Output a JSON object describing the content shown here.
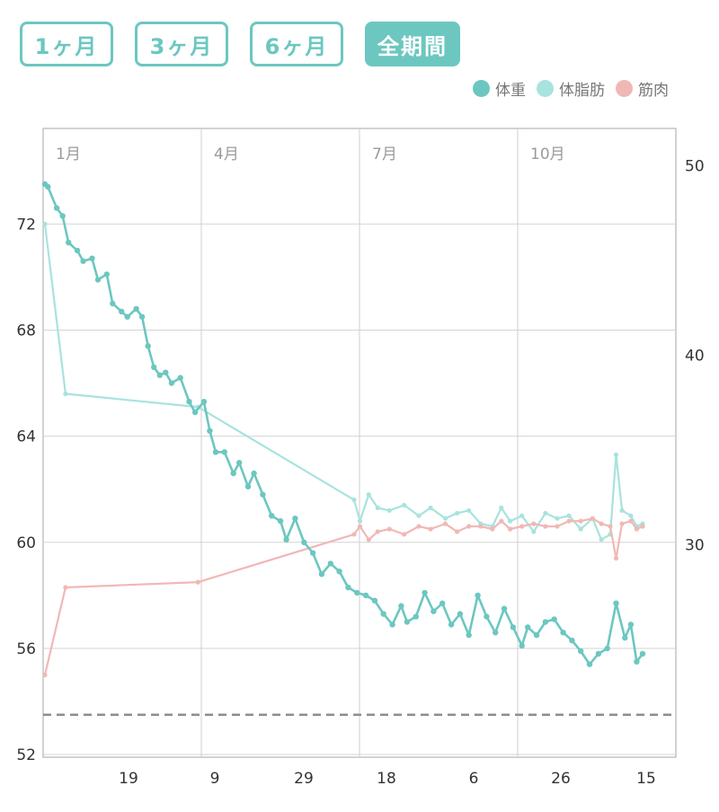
{
  "tabs": [
    {
      "label": "1ヶ月",
      "active": false
    },
    {
      "label": "3ヶ月",
      "active": false
    },
    {
      "label": "6ヶ月",
      "active": false
    },
    {
      "label": "全期間",
      "active": true
    }
  ],
  "legend": [
    {
      "label": "体重",
      "color": "#6cc7c0"
    },
    {
      "label": "体脂肪",
      "color": "#a8e3de"
    },
    {
      "label": "筋肉",
      "color": "#f0b8b5"
    }
  ],
  "chart_data": {
    "type": "line",
    "y_left": {
      "ticks": [
        52,
        56,
        60,
        64,
        68,
        72
      ],
      "range": [
        51.9,
        75.6
      ]
    },
    "y_right": {
      "ticks": [
        30,
        40,
        50
      ]
    },
    "month_labels": [
      "1月",
      "4月",
      "7月",
      "10月"
    ],
    "date_labels": [
      "19",
      "9",
      "29",
      "18",
      "6",
      "26",
      "15"
    ],
    "target_line": 53.5,
    "series": [
      {
        "name": "体重",
        "color": "#6cc7c0",
        "points": [
          [
            0,
            73.5
          ],
          [
            1,
            73.4
          ],
          [
            4,
            72.6
          ],
          [
            6,
            72.3
          ],
          [
            8,
            71.3
          ],
          [
            11,
            71.0
          ],
          [
            13,
            70.6
          ],
          [
            16,
            70.7
          ],
          [
            18,
            69.9
          ],
          [
            21,
            70.1
          ],
          [
            23,
            69.0
          ],
          [
            26,
            68.7
          ],
          [
            28,
            68.5
          ],
          [
            31,
            68.8
          ],
          [
            33,
            68.5
          ],
          [
            35,
            67.4
          ],
          [
            37,
            66.6
          ],
          [
            39,
            66.3
          ],
          [
            41,
            66.4
          ],
          [
            43,
            66.0
          ],
          [
            46,
            66.2
          ],
          [
            49,
            65.3
          ],
          [
            51,
            64.9
          ],
          [
            54,
            65.3
          ],
          [
            56,
            64.2
          ],
          [
            58,
            63.4
          ],
          [
            61,
            63.4
          ],
          [
            64,
            62.6
          ],
          [
            66,
            63.0
          ],
          [
            69,
            62.1
          ],
          [
            71,
            62.6
          ],
          [
            74,
            61.8
          ],
          [
            77,
            61.0
          ],
          [
            80,
            60.8
          ],
          [
            82,
            60.1
          ],
          [
            85,
            60.9
          ],
          [
            88,
            60.0
          ],
          [
            91,
            59.6
          ],
          [
            94,
            58.8
          ],
          [
            97,
            59.2
          ],
          [
            100,
            58.9
          ],
          [
            103,
            58.3
          ],
          [
            106,
            58.1
          ],
          [
            109,
            58.0
          ],
          [
            112,
            57.8
          ],
          [
            115,
            57.3
          ],
          [
            118,
            56.9
          ],
          [
            121,
            57.6
          ],
          [
            123,
            57.0
          ],
          [
            126,
            57.2
          ],
          [
            129,
            58.1
          ],
          [
            132,
            57.4
          ],
          [
            135,
            57.7
          ],
          [
            138,
            56.9
          ],
          [
            141,
            57.3
          ],
          [
            144,
            56.5
          ],
          [
            147,
            58.0
          ],
          [
            150,
            57.2
          ],
          [
            153,
            56.6
          ],
          [
            156,
            57.5
          ],
          [
            159,
            56.8
          ],
          [
            162,
            56.1
          ],
          [
            164,
            56.8
          ],
          [
            167,
            56.5
          ],
          [
            170,
            57.0
          ],
          [
            173,
            57.1
          ],
          [
            176,
            56.6
          ],
          [
            179,
            56.3
          ],
          [
            182,
            55.9
          ],
          [
            185,
            55.4
          ],
          [
            188,
            55.8
          ],
          [
            191,
            56.0
          ],
          [
            194,
            57.7
          ],
          [
            197,
            56.4
          ],
          [
            199,
            56.9
          ],
          [
            201,
            55.5
          ],
          [
            203,
            55.8
          ]
        ]
      },
      {
        "name": "体脂肪",
        "color": "#a8e3de",
        "points": [
          [
            0,
            72.0
          ],
          [
            7,
            65.6
          ],
          [
            52,
            65.1
          ],
          [
            105,
            61.6
          ],
          [
            107,
            60.8
          ],
          [
            110,
            61.8
          ],
          [
            113,
            61.3
          ],
          [
            117,
            61.2
          ],
          [
            122,
            61.4
          ],
          [
            127,
            61.0
          ],
          [
            131,
            61.3
          ],
          [
            136,
            60.9
          ],
          [
            140,
            61.1
          ],
          [
            144,
            61.2
          ],
          [
            148,
            60.7
          ],
          [
            152,
            60.6
          ],
          [
            155,
            61.3
          ],
          [
            158,
            60.8
          ],
          [
            162,
            61.0
          ],
          [
            166,
            60.4
          ],
          [
            170,
            61.1
          ],
          [
            174,
            60.9
          ],
          [
            178,
            61.0
          ],
          [
            182,
            60.5
          ],
          [
            186,
            60.9
          ],
          [
            189,
            60.1
          ],
          [
            192,
            60.3
          ],
          [
            194,
            63.3
          ],
          [
            196,
            61.2
          ],
          [
            199,
            61.0
          ],
          [
            201,
            60.6
          ],
          [
            203,
            60.7
          ]
        ]
      },
      {
        "name": "筋肉",
        "color": "#f0b8b5",
        "points": [
          [
            0,
            55.0
          ],
          [
            7,
            58.3
          ],
          [
            52,
            58.5
          ],
          [
            105,
            60.3
          ],
          [
            107,
            60.6
          ],
          [
            110,
            60.1
          ],
          [
            113,
            60.4
          ],
          [
            117,
            60.5
          ],
          [
            122,
            60.3
          ],
          [
            127,
            60.6
          ],
          [
            131,
            60.5
          ],
          [
            136,
            60.7
          ],
          [
            140,
            60.4
          ],
          [
            144,
            60.6
          ],
          [
            148,
            60.6
          ],
          [
            152,
            60.5
          ],
          [
            155,
            60.8
          ],
          [
            158,
            60.5
          ],
          [
            162,
            60.6
          ],
          [
            166,
            60.7
          ],
          [
            170,
            60.6
          ],
          [
            174,
            60.6
          ],
          [
            178,
            60.8
          ],
          [
            182,
            60.8
          ],
          [
            186,
            60.9
          ],
          [
            189,
            60.7
          ],
          [
            192,
            60.6
          ],
          [
            194,
            59.4
          ],
          [
            196,
            60.7
          ],
          [
            199,
            60.8
          ],
          [
            201,
            60.5
          ],
          [
            203,
            60.6
          ]
        ]
      }
    ]
  }
}
